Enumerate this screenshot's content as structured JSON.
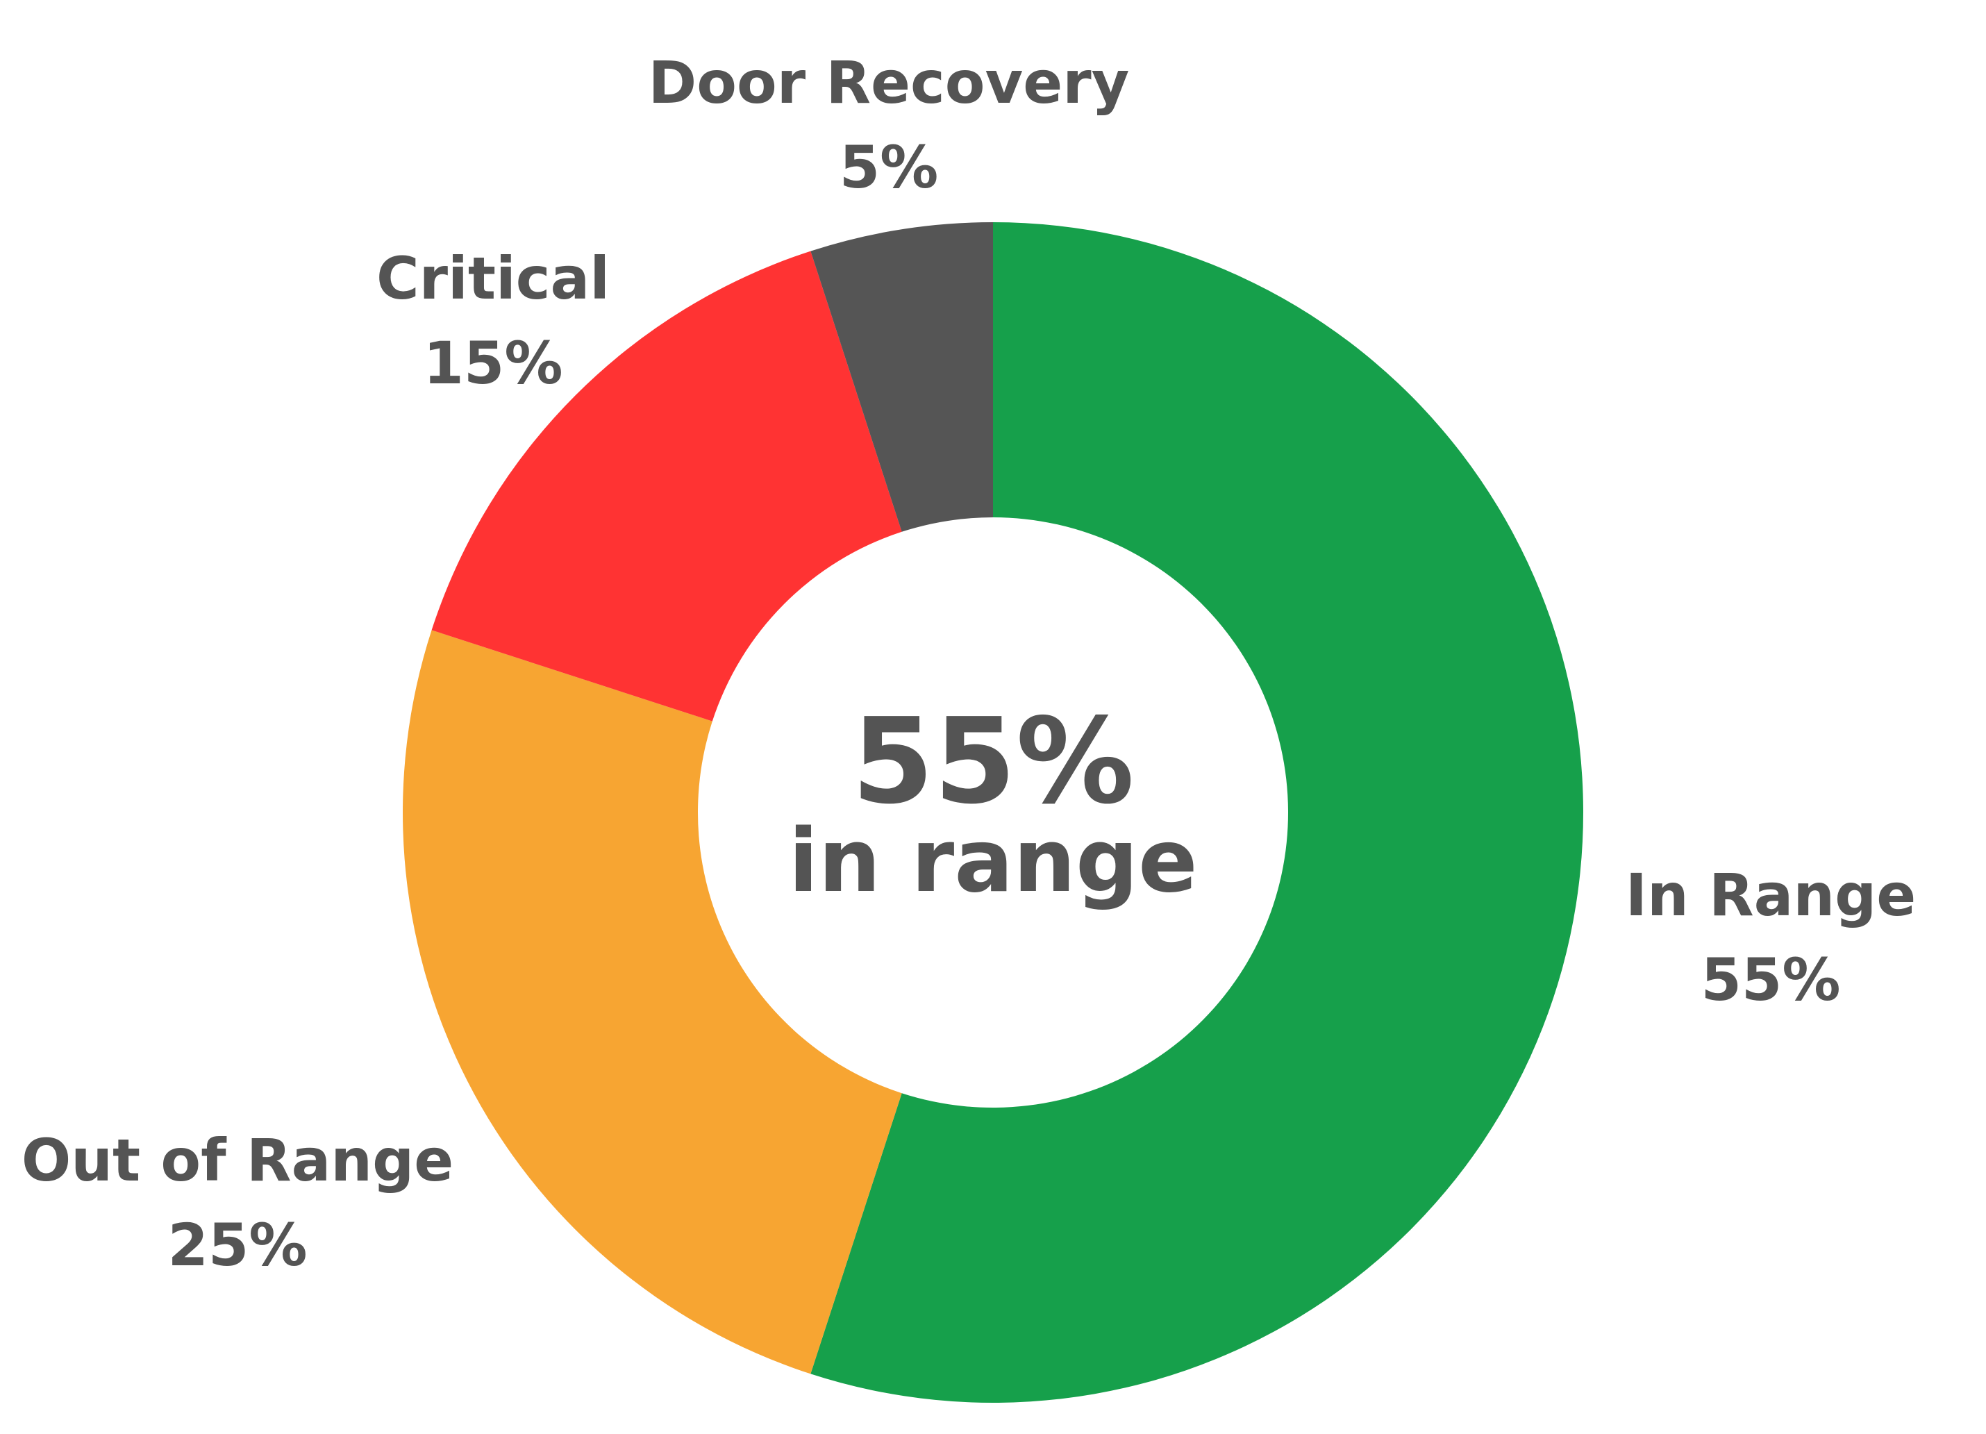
{
  "chart_data": {
    "type": "pie",
    "variant": "donut",
    "title": "",
    "slices": [
      {
        "name": "In Range",
        "value": 55,
        "label": "55%",
        "color": "#16A04B"
      },
      {
        "name": "Out of Range",
        "value": 25,
        "label": "25%",
        "color": "#F7A532"
      },
      {
        "name": "Critical",
        "value": 15,
        "label": "15%",
        "color": "#FF3333"
      },
      {
        "name": "Door Recovery",
        "value": 5,
        "label": "5%",
        "color": "#555555"
      }
    ],
    "center": {
      "value": "55%",
      "caption": "in range"
    },
    "start_angle": "top",
    "direction": "clockwise",
    "legend": "none",
    "label_color": "#545454"
  }
}
